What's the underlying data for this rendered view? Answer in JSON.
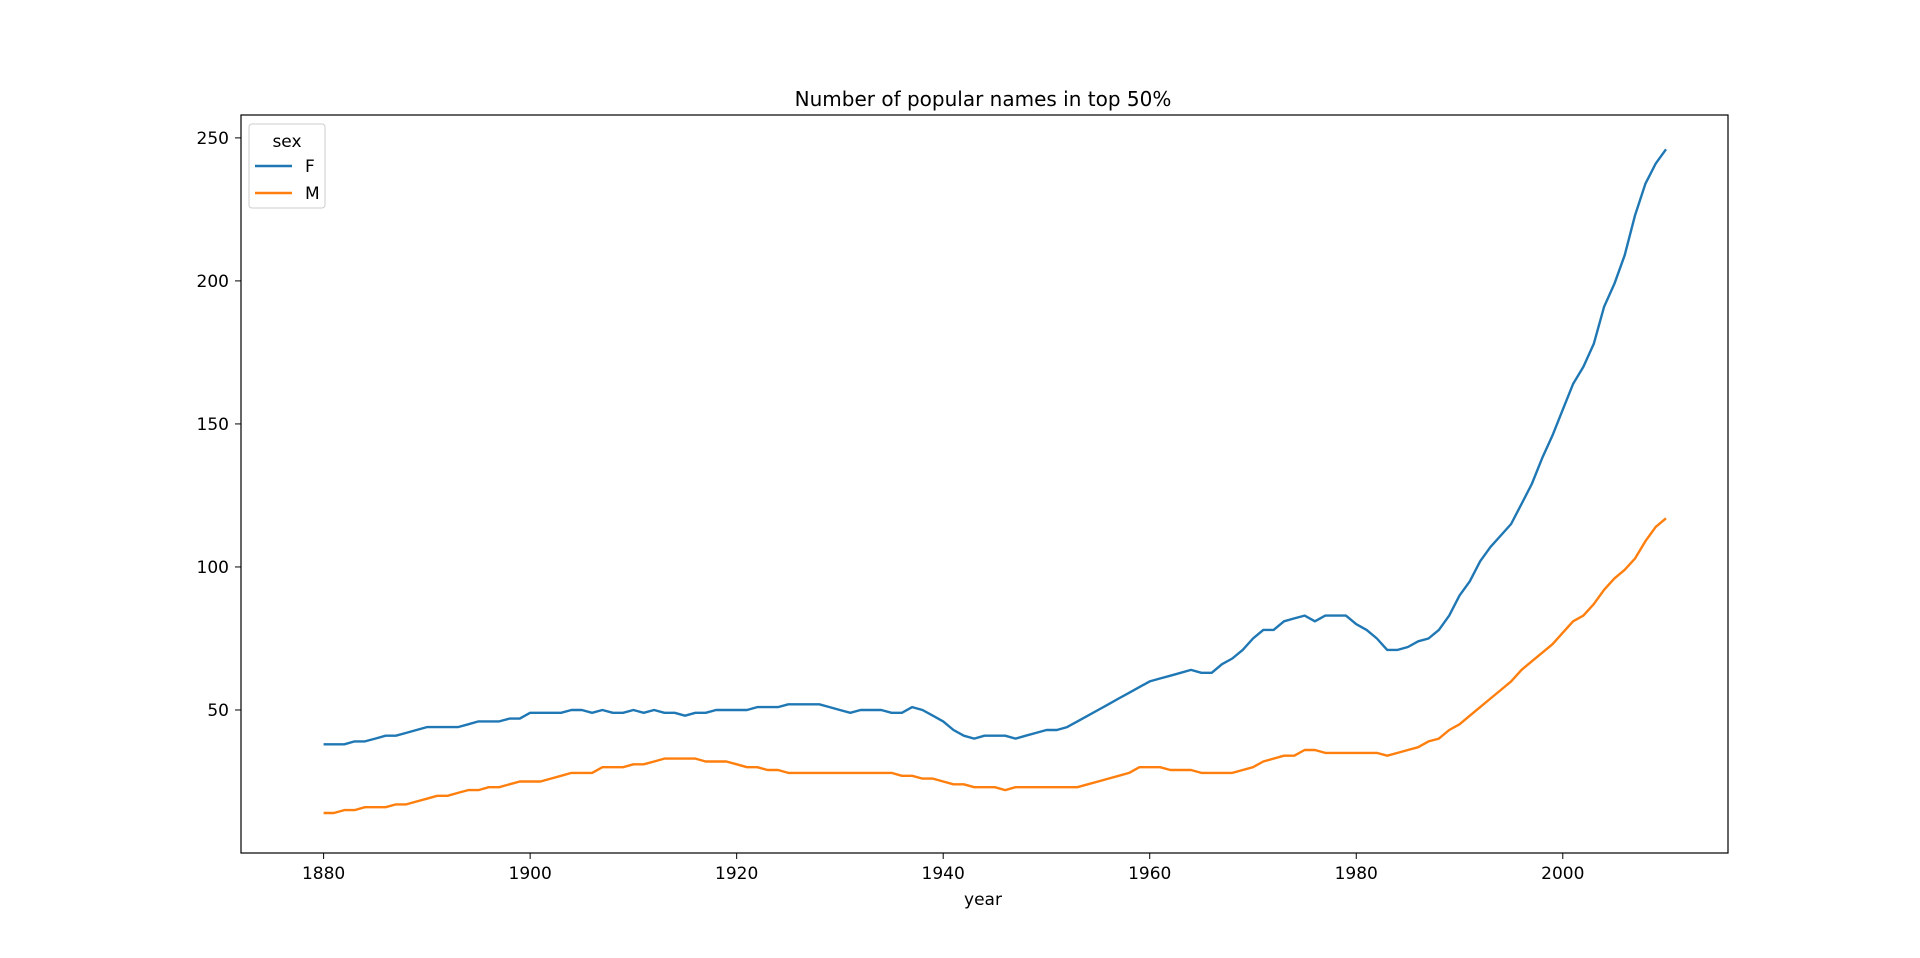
{
  "chart_data": {
    "type": "line",
    "title": "Number of popular names in top 50%",
    "xlabel": "year",
    "ylabel": "",
    "xlim": [
      1872,
      2016
    ],
    "ylim": [
      0,
      258
    ],
    "xticks": [
      1880,
      1900,
      1920,
      1940,
      1960,
      1980,
      2000
    ],
    "yticks": [
      50,
      100,
      150,
      200,
      250
    ],
    "grid": false,
    "legend": {
      "title": "sex",
      "placement": "top-left"
    },
    "series": [
      {
        "name": "F",
        "color": "#1f77b4",
        "points": [
          [
            1880,
            38
          ],
          [
            1881,
            38
          ],
          [
            1882,
            38
          ],
          [
            1883,
            39
          ],
          [
            1884,
            39
          ],
          [
            1885,
            40
          ],
          [
            1886,
            41
          ],
          [
            1887,
            41
          ],
          [
            1888,
            42
          ],
          [
            1889,
            43
          ],
          [
            1890,
            44
          ],
          [
            1891,
            44
          ],
          [
            1892,
            44
          ],
          [
            1893,
            44
          ],
          [
            1894,
            45
          ],
          [
            1895,
            46
          ],
          [
            1896,
            46
          ],
          [
            1897,
            46
          ],
          [
            1898,
            47
          ],
          [
            1899,
            47
          ],
          [
            1900,
            49
          ],
          [
            1901,
            49
          ],
          [
            1902,
            49
          ],
          [
            1903,
            49
          ],
          [
            1904,
            50
          ],
          [
            1905,
            50
          ],
          [
            1906,
            49
          ],
          [
            1907,
            50
          ],
          [
            1908,
            49
          ],
          [
            1909,
            49
          ],
          [
            1910,
            50
          ],
          [
            1911,
            49
          ],
          [
            1912,
            50
          ],
          [
            1913,
            49
          ],
          [
            1914,
            49
          ],
          [
            1915,
            48
          ],
          [
            1916,
            49
          ],
          [
            1917,
            49
          ],
          [
            1918,
            50
          ],
          [
            1919,
            50
          ],
          [
            1920,
            50
          ],
          [
            1921,
            50
          ],
          [
            1922,
            51
          ],
          [
            1923,
            51
          ],
          [
            1924,
            51
          ],
          [
            1925,
            52
          ],
          [
            1926,
            52
          ],
          [
            1927,
            52
          ],
          [
            1928,
            52
          ],
          [
            1929,
            51
          ],
          [
            1930,
            50
          ],
          [
            1931,
            49
          ],
          [
            1932,
            50
          ],
          [
            1933,
            50
          ],
          [
            1934,
            50
          ],
          [
            1935,
            49
          ],
          [
            1936,
            49
          ],
          [
            1937,
            51
          ],
          [
            1938,
            50
          ],
          [
            1939,
            48
          ],
          [
            1940,
            46
          ],
          [
            1941,
            43
          ],
          [
            1942,
            41
          ],
          [
            1943,
            40
          ],
          [
            1944,
            41
          ],
          [
            1945,
            41
          ],
          [
            1946,
            41
          ],
          [
            1947,
            40
          ],
          [
            1948,
            41
          ],
          [
            1949,
            42
          ],
          [
            1950,
            43
          ],
          [
            1951,
            43
          ],
          [
            1952,
            44
          ],
          [
            1953,
            46
          ],
          [
            1954,
            48
          ],
          [
            1955,
            50
          ],
          [
            1956,
            52
          ],
          [
            1957,
            54
          ],
          [
            1958,
            56
          ],
          [
            1959,
            58
          ],
          [
            1960,
            60
          ],
          [
            1961,
            61
          ],
          [
            1962,
            62
          ],
          [
            1963,
            63
          ],
          [
            1964,
            64
          ],
          [
            1965,
            63
          ],
          [
            1966,
            63
          ],
          [
            1967,
            66
          ],
          [
            1968,
            68
          ],
          [
            1969,
            71
          ],
          [
            1970,
            75
          ],
          [
            1971,
            78
          ],
          [
            1972,
            78
          ],
          [
            1973,
            81
          ],
          [
            1974,
            82
          ],
          [
            1975,
            83
          ],
          [
            1976,
            81
          ],
          [
            1977,
            83
          ],
          [
            1978,
            83
          ],
          [
            1979,
            83
          ],
          [
            1980,
            80
          ],
          [
            1981,
            78
          ],
          [
            1982,
            75
          ],
          [
            1983,
            71
          ],
          [
            1984,
            71
          ],
          [
            1985,
            72
          ],
          [
            1986,
            74
          ],
          [
            1987,
            75
          ],
          [
            1988,
            78
          ],
          [
            1989,
            83
          ],
          [
            1990,
            90
          ],
          [
            1991,
            95
          ],
          [
            1992,
            102
          ],
          [
            1993,
            107
          ],
          [
            1994,
            111
          ],
          [
            1995,
            115
          ],
          [
            1996,
            122
          ],
          [
            1997,
            129
          ],
          [
            1998,
            138
          ],
          [
            1999,
            146
          ],
          [
            2000,
            155
          ],
          [
            2001,
            164
          ],
          [
            2002,
            170
          ],
          [
            2003,
            178
          ],
          [
            2004,
            191
          ],
          [
            2005,
            199
          ],
          [
            2006,
            209
          ],
          [
            2007,
            223
          ],
          [
            2008,
            234
          ],
          [
            2009,
            241
          ],
          [
            2010,
            246
          ]
        ]
      },
      {
        "name": "M",
        "color": "#ff7f0e",
        "points": [
          [
            1880,
            14
          ],
          [
            1881,
            14
          ],
          [
            1882,
            15
          ],
          [
            1883,
            15
          ],
          [
            1884,
            16
          ],
          [
            1885,
            16
          ],
          [
            1886,
            16
          ],
          [
            1887,
            17
          ],
          [
            1888,
            17
          ],
          [
            1889,
            18
          ],
          [
            1890,
            19
          ],
          [
            1891,
            20
          ],
          [
            1892,
            20
          ],
          [
            1893,
            21
          ],
          [
            1894,
            22
          ],
          [
            1895,
            22
          ],
          [
            1896,
            23
          ],
          [
            1897,
            23
          ],
          [
            1898,
            24
          ],
          [
            1899,
            25
          ],
          [
            1900,
            25
          ],
          [
            1901,
            25
          ],
          [
            1902,
            26
          ],
          [
            1903,
            27
          ],
          [
            1904,
            28
          ],
          [
            1905,
            28
          ],
          [
            1906,
            28
          ],
          [
            1907,
            30
          ],
          [
            1908,
            30
          ],
          [
            1909,
            30
          ],
          [
            1910,
            31
          ],
          [
            1911,
            31
          ],
          [
            1912,
            32
          ],
          [
            1913,
            33
          ],
          [
            1914,
            33
          ],
          [
            1915,
            33
          ],
          [
            1916,
            33
          ],
          [
            1917,
            32
          ],
          [
            1918,
            32
          ],
          [
            1919,
            32
          ],
          [
            1920,
            31
          ],
          [
            1921,
            30
          ],
          [
            1922,
            30
          ],
          [
            1923,
            29
          ],
          [
            1924,
            29
          ],
          [
            1925,
            28
          ],
          [
            1926,
            28
          ],
          [
            1927,
            28
          ],
          [
            1928,
            28
          ],
          [
            1929,
            28
          ],
          [
            1930,
            28
          ],
          [
            1931,
            28
          ],
          [
            1932,
            28
          ],
          [
            1933,
            28
          ],
          [
            1934,
            28
          ],
          [
            1935,
            28
          ],
          [
            1936,
            27
          ],
          [
            1937,
            27
          ],
          [
            1938,
            26
          ],
          [
            1939,
            26
          ],
          [
            1940,
            25
          ],
          [
            1941,
            24
          ],
          [
            1942,
            24
          ],
          [
            1943,
            23
          ],
          [
            1944,
            23
          ],
          [
            1945,
            23
          ],
          [
            1946,
            22
          ],
          [
            1947,
            23
          ],
          [
            1948,
            23
          ],
          [
            1949,
            23
          ],
          [
            1950,
            23
          ],
          [
            1951,
            23
          ],
          [
            1952,
            23
          ],
          [
            1953,
            23
          ],
          [
            1954,
            24
          ],
          [
            1955,
            25
          ],
          [
            1956,
            26
          ],
          [
            1957,
            27
          ],
          [
            1958,
            28
          ],
          [
            1959,
            30
          ],
          [
            1960,
            30
          ],
          [
            1961,
            30
          ],
          [
            1962,
            29
          ],
          [
            1963,
            29
          ],
          [
            1964,
            29
          ],
          [
            1965,
            28
          ],
          [
            1966,
            28
          ],
          [
            1967,
            28
          ],
          [
            1968,
            28
          ],
          [
            1969,
            29
          ],
          [
            1970,
            30
          ],
          [
            1971,
            32
          ],
          [
            1972,
            33
          ],
          [
            1973,
            34
          ],
          [
            1974,
            34
          ],
          [
            1975,
            36
          ],
          [
            1976,
            36
          ],
          [
            1977,
            35
          ],
          [
            1978,
            35
          ],
          [
            1979,
            35
          ],
          [
            1980,
            35
          ],
          [
            1981,
            35
          ],
          [
            1982,
            35
          ],
          [
            1983,
            34
          ],
          [
            1984,
            35
          ],
          [
            1985,
            36
          ],
          [
            1986,
            37
          ],
          [
            1987,
            39
          ],
          [
            1988,
            40
          ],
          [
            1989,
            43
          ],
          [
            1990,
            45
          ],
          [
            1991,
            48
          ],
          [
            1992,
            51
          ],
          [
            1993,
            54
          ],
          [
            1994,
            57
          ],
          [
            1995,
            60
          ],
          [
            1996,
            64
          ],
          [
            1997,
            67
          ],
          [
            1998,
            70
          ],
          [
            1999,
            73
          ],
          [
            2000,
            77
          ],
          [
            2001,
            81
          ],
          [
            2002,
            83
          ],
          [
            2003,
            87
          ],
          [
            2004,
            92
          ],
          [
            2005,
            96
          ],
          [
            2006,
            99
          ],
          [
            2007,
            103
          ],
          [
            2008,
            109
          ],
          [
            2009,
            114
          ],
          [
            2010,
            117
          ]
        ]
      }
    ]
  }
}
